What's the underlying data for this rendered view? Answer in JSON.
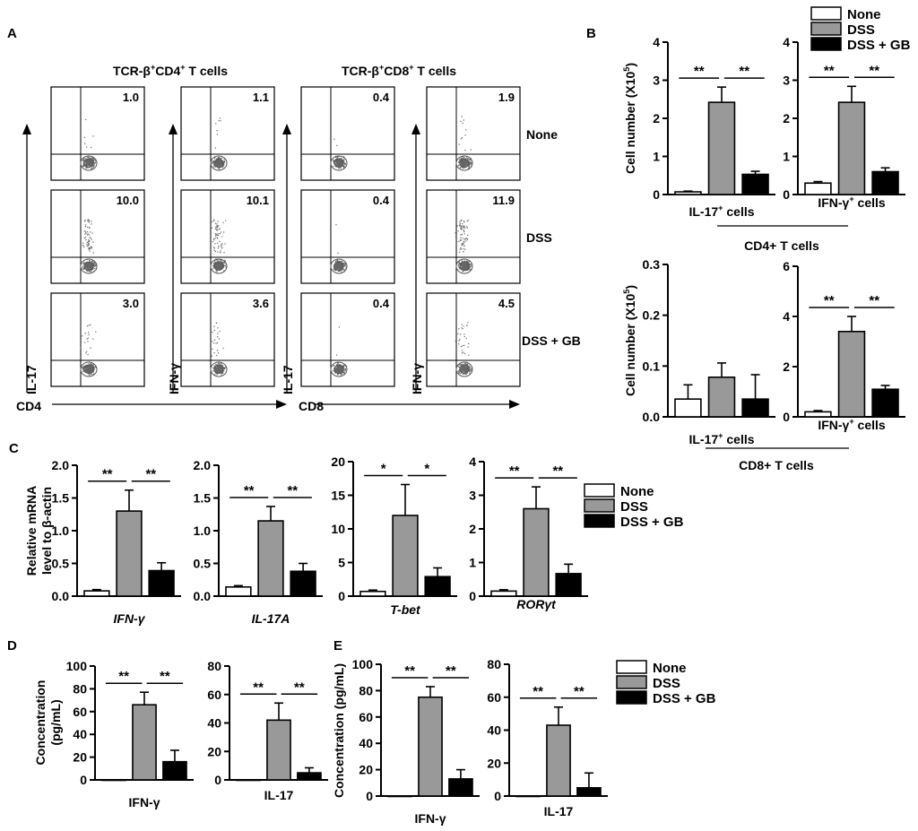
{
  "panels": {
    "A": {
      "label": "A",
      "group_titles": [
        "TCR-β+CD4+ T cells",
        "TCR-β+CD8+ T cells"
      ],
      "group_title_parts": [
        {
          "pre": "TCR-β",
          "sup1": "+",
          "mid": "CD4",
          "sup2": "+",
          "post": " T cells"
        },
        {
          "pre": "TCR-β",
          "sup1": "+",
          "mid": "CD8",
          "sup2": "+",
          "post": " T cells"
        }
      ],
      "row_labels": [
        "None",
        "DSS",
        "DSS + GB"
      ],
      "y_axis_labels": [
        "IL-17",
        "IFN-γ",
        "IL-17",
        "IFN-γ"
      ],
      "x_axis_labels": [
        "CD4",
        "CD8"
      ],
      "quadrant_values": [
        [
          "1.0",
          "1.1",
          "0.4",
          "1.9"
        ],
        [
          "10.0",
          "10.1",
          "0.4",
          "11.9"
        ],
        [
          "3.0",
          "3.6",
          "0.4",
          "4.5"
        ]
      ]
    },
    "B": {
      "label": "B",
      "group_labels": [
        "CD4+ T cells",
        "CD8+ T cells"
      ]
    },
    "C": {
      "label": "C"
    },
    "D": {
      "label": "D"
    },
    "E": {
      "label": "E"
    }
  },
  "legend": [
    "None",
    "DSS",
    "DSS + GB"
  ],
  "colors": {
    "None": "#ffffff",
    "DSS": "#999999",
    "DSS + GB": "#000000"
  },
  "chart_data": [
    {
      "id": "B1",
      "panel": "B",
      "type": "bar",
      "categories": [
        "None",
        "DSS",
        "DSS + GB"
      ],
      "values": [
        0.07,
        2.42,
        0.53
      ],
      "errors": [
        0.02,
        0.4,
        0.08
      ],
      "xlabel": "IL-17+ cells",
      "ylabel": "Cell number (X105)",
      "ylim": [
        0,
        4
      ],
      "yticks": [
        0,
        1,
        2,
        3,
        4
      ],
      "tick_labels": [
        "0",
        "1",
        "2",
        "3",
        "4"
      ],
      "significance": [
        "**",
        "**"
      ]
    },
    {
      "id": "B2",
      "panel": "B",
      "type": "bar",
      "categories": [
        "None",
        "DSS",
        "DSS + GB"
      ],
      "values": [
        0.3,
        2.42,
        0.6
      ],
      "errors": [
        0.04,
        0.42,
        0.1
      ],
      "xlabel": "IFN-γ+ cells",
      "ylabel": "",
      "ylim": [
        0,
        4
      ],
      "yticks": [
        0,
        1,
        2,
        3,
        4
      ],
      "tick_labels": [
        "0",
        "1",
        "2",
        "3",
        "4"
      ],
      "significance": [
        "**",
        "**"
      ]
    },
    {
      "id": "B3",
      "panel": "B",
      "type": "bar",
      "categories": [
        "None",
        "DSS",
        "DSS + GB"
      ],
      "values": [
        0.035,
        0.078,
        0.035
      ],
      "errors": [
        0.028,
        0.028,
        0.048
      ],
      "xlabel": "IL-17+ cells",
      "ylabel": "Cell number (X105)",
      "ylim": [
        0,
        0.3
      ],
      "yticks": [
        0,
        0.1,
        0.2,
        0.3
      ],
      "tick_labels": [
        "0.0",
        "0.1",
        "0.2",
        "0.3"
      ],
      "significance": []
    },
    {
      "id": "B4",
      "panel": "B",
      "type": "bar",
      "categories": [
        "None",
        "DSS",
        "DSS + GB"
      ],
      "values": [
        0.2,
        3.4,
        1.1
      ],
      "errors": [
        0.05,
        0.6,
        0.15
      ],
      "xlabel": "IFN-γ+ cells",
      "ylabel": "",
      "ylim": [
        0,
        6
      ],
      "yticks": [
        0,
        2,
        4,
        6
      ],
      "tick_labels": [
        "0",
        "2",
        "4",
        "6"
      ],
      "significance": [
        "**",
        "**"
      ]
    },
    {
      "id": "C1",
      "panel": "C",
      "type": "bar",
      "categories": [
        "None",
        "DSS",
        "DSS + GB"
      ],
      "values": [
        0.08,
        1.3,
        0.39
      ],
      "errors": [
        0.02,
        0.32,
        0.12
      ],
      "xlabel": "IFN-γ",
      "ylabel": "Relative mRNA level to β-actin",
      "ylim": [
        0,
        2
      ],
      "yticks": [
        0,
        0.5,
        1,
        1.5,
        2
      ],
      "tick_labels": [
        "0.0",
        "0.5",
        "1.0",
        "1.5",
        "2.0"
      ],
      "significance": [
        "**",
        "**"
      ]
    },
    {
      "id": "C2",
      "panel": "C",
      "type": "bar",
      "categories": [
        "None",
        "DSS",
        "DSS + GB"
      ],
      "values": [
        0.14,
        1.15,
        0.38
      ],
      "errors": [
        0.02,
        0.22,
        0.12
      ],
      "xlabel": "IL-17A",
      "ylabel": "",
      "ylim": [
        0,
        2
      ],
      "yticks": [
        0,
        0.5,
        1,
        1.5,
        2
      ],
      "tick_labels": [
        "0.0",
        "0.5",
        "1.0",
        "1.5",
        "2.0"
      ],
      "significance": [
        "**",
        "**"
      ]
    },
    {
      "id": "C3",
      "panel": "C",
      "type": "bar",
      "categories": [
        "None",
        "DSS",
        "DSS + GB"
      ],
      "values": [
        0.7,
        12,
        2.9
      ],
      "errors": [
        0.2,
        4.6,
        1.3
      ],
      "xlabel": "T-bet",
      "ylabel": "",
      "ylim": [
        0,
        20
      ],
      "yticks": [
        0,
        5,
        10,
        15,
        20
      ],
      "tick_labels": [
        "0",
        "5",
        "10",
        "15",
        "20"
      ],
      "significance": [
        "*",
        "*"
      ]
    },
    {
      "id": "C4",
      "panel": "C",
      "type": "bar",
      "categories": [
        "None",
        "DSS",
        "DSS + GB"
      ],
      "values": [
        0.15,
        2.6,
        0.67
      ],
      "errors": [
        0.04,
        0.65,
        0.28
      ],
      "xlabel": "RORγt",
      "ylabel": "",
      "ylim": [
        0,
        4
      ],
      "yticks": [
        0,
        1,
        2,
        3,
        4
      ],
      "tick_labels": [
        "0",
        "1",
        "2",
        "3",
        "4"
      ],
      "significance": [
        "**",
        "**"
      ]
    },
    {
      "id": "D1",
      "panel": "D",
      "type": "bar",
      "categories": [
        "None",
        "DSS",
        "DSS + GB"
      ],
      "values": [
        0,
        66,
        16
      ],
      "errors": [
        0,
        11,
        10
      ],
      "xlabel": "IFN-γ",
      "ylabel": "Concentration (pg/mL)",
      "ylim": [
        0,
        100
      ],
      "yticks": [
        0,
        20,
        40,
        60,
        80,
        100
      ],
      "tick_labels": [
        "0",
        "20",
        "40",
        "60",
        "80",
        "100"
      ],
      "significance": [
        "**",
        "**"
      ]
    },
    {
      "id": "D2",
      "panel": "D",
      "type": "bar",
      "categories": [
        "None",
        "DSS",
        "DSS + GB"
      ],
      "values": [
        0,
        42,
        5
      ],
      "errors": [
        0,
        12,
        3.5
      ],
      "xlabel": "IL-17",
      "ylabel": "",
      "ylim": [
        0,
        80
      ],
      "yticks": [
        0,
        20,
        40,
        60,
        80
      ],
      "tick_labels": [
        "0",
        "20",
        "40",
        "60",
        "80"
      ],
      "significance": [
        "**",
        "**"
      ]
    },
    {
      "id": "E1",
      "panel": "E",
      "type": "bar",
      "categories": [
        "None",
        "DSS",
        "DSS + GB"
      ],
      "values": [
        0,
        75,
        13
      ],
      "errors": [
        0,
        8,
        7
      ],
      "xlabel": "IFN-γ",
      "ylabel": "Concentration (pg/mL)",
      "ylim": [
        0,
        100
      ],
      "yticks": [
        0,
        20,
        40,
        60,
        80,
        100
      ],
      "tick_labels": [
        "0",
        "20",
        "40",
        "60",
        "80",
        "100"
      ],
      "significance": [
        "**",
        "**"
      ]
    },
    {
      "id": "E2",
      "panel": "E",
      "type": "bar",
      "categories": [
        "None",
        "DSS",
        "DSS + GB"
      ],
      "values": [
        0,
        43,
        5
      ],
      "errors": [
        0,
        11,
        9
      ],
      "xlabel": "IL-17",
      "ylabel": "",
      "ylim": [
        0,
        80
      ],
      "yticks": [
        0,
        20,
        40,
        60,
        80
      ],
      "tick_labels": [
        "0",
        "20",
        "40",
        "60",
        "80"
      ],
      "significance": [
        "**",
        "**"
      ]
    }
  ]
}
